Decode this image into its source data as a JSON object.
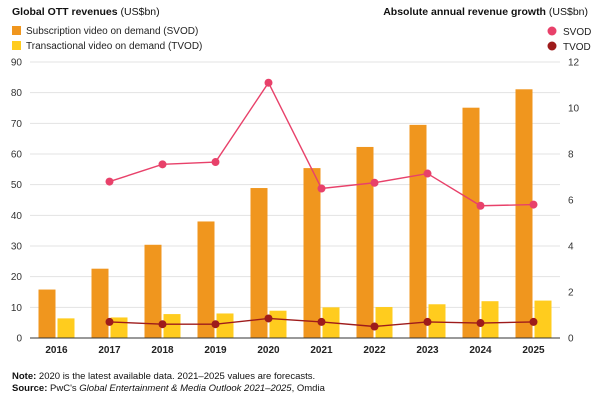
{
  "header": {
    "left_title_bold": "Global OTT revenues",
    "left_title_unit": " (US$bn)",
    "right_title_bold": "Absolute annual revenue growth",
    "right_title_unit": " (US$bn)"
  },
  "footer": {
    "note_label": "Note:",
    "note_text": " 2020 is the latest available data. 2021–2025 values are forecasts.",
    "source_label": "Source:",
    "source_pre": " PwC's ",
    "source_italic": "Global Entertainment & Media Outlook 2021–2025",
    "source_post": ", Omdia"
  },
  "colors": {
    "svod_bar": "#F0961E",
    "tvod_bar": "#FFCC1E",
    "svod_line": "#E8416A",
    "tvod_line": "#9E1B1B",
    "grid": "#E3E3E3",
    "axis": "#333333"
  },
  "chart_data": {
    "type": "bar",
    "categories": [
      "2016",
      "2017",
      "2018",
      "2019",
      "2020",
      "2021",
      "2022",
      "2023",
      "2024",
      "2025"
    ],
    "left_axis": {
      "ylim": [
        0,
        90
      ],
      "ticks": [
        "0",
        "10",
        "20",
        "30",
        "40",
        "50",
        "60",
        "70",
        "80",
        "90"
      ]
    },
    "right_axis": {
      "ylim": [
        0,
        12
      ],
      "ticks": [
        "0",
        "2",
        "4",
        "6",
        "8",
        "10",
        "12"
      ]
    },
    "bar_series": [
      {
        "name": "Subscription video on demand (SVOD)",
        "values": [
          15.8,
          22.6,
          30.4,
          38.0,
          48.9,
          55.4,
          62.3,
          69.5,
          75.1,
          81.1
        ]
      },
      {
        "name": "Transactional video on demand (TVOD)",
        "values": [
          6.4,
          6.7,
          7.8,
          8.0,
          8.9,
          10.0,
          10.1,
          11.0,
          12.0,
          12.2
        ]
      }
    ],
    "line_series": [
      {
        "name": "SVOD",
        "values": [
          null,
          6.8,
          7.55,
          7.65,
          11.1,
          6.5,
          6.75,
          7.15,
          5.75,
          5.8
        ]
      },
      {
        "name": "TVOD",
        "values": [
          null,
          0.7,
          0.6,
          0.6,
          0.85,
          0.7,
          0.5,
          0.7,
          0.65,
          0.7
        ]
      }
    ],
    "grid": true,
    "legend_left_position": "top-left",
    "legend_right_position": "top-right"
  }
}
